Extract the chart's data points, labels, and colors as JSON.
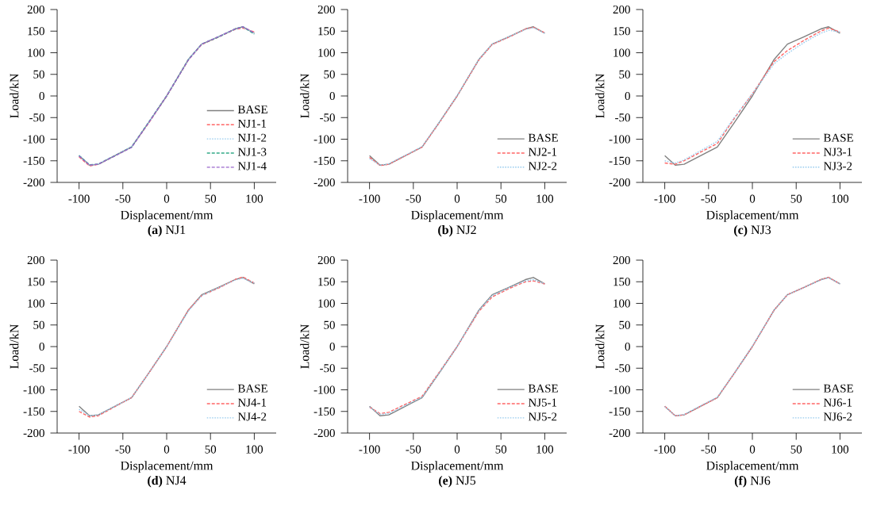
{
  "chart_data": [
    {
      "type": "line",
      "title": "**(a)** NJ1",
      "xlabel": "Displacement/mm",
      "ylabel": "Load/kN",
      "legend": "bottom right",
      "xlim": [
        -125,
        125
      ],
      "ylim": [
        -200,
        200
      ],
      "xticks": [
        -100,
        -50,
        0,
        50,
        100
      ],
      "yticks": [
        -200,
        -150,
        -100,
        -50,
        0,
        50,
        100,
        150,
        200
      ],
      "x": [
        -100,
        -88,
        -78,
        -40,
        -20,
        0,
        25,
        40,
        60,
        78,
        87,
        100
      ],
      "series": [
        {
          "name": "BASE",
          "color": "#808080",
          "line_style": "solid",
          "values": [
            -138,
            -160,
            -158,
            -118,
            -60,
            0,
            85,
            120,
            138,
            155,
            160,
            145
          ]
        },
        {
          "name": "NJ1-1",
          "color": "#ff6666",
          "line_style": "dashed",
          "values": [
            -141,
            -162,
            -158,
            -118,
            -61,
            0,
            84,
            119,
            137,
            154,
            157,
            148
          ]
        },
        {
          "name": "NJ1-2",
          "color": "#99ccee",
          "line_style": "dotted",
          "values": [
            -137,
            -160,
            -157,
            -117,
            -60,
            1,
            85,
            120,
            138,
            154,
            159,
            145
          ]
        },
        {
          "name": "NJ1-3",
          "color": "#33aa88",
          "line_style": "dashed",
          "values": [
            -138,
            -159,
            -158,
            -118,
            -59,
            0,
            85,
            120,
            137,
            155,
            160,
            143
          ]
        },
        {
          "name": "NJ1-4",
          "color": "#9966cc",
          "line_style": "dashed",
          "values": [
            -139,
            -160,
            -158,
            -119,
            -60,
            0,
            84,
            120,
            138,
            155,
            160,
            146
          ]
        }
      ]
    },
    {
      "type": "line",
      "title": "**(b)** NJ2",
      "xlabel": "Displacement/mm",
      "ylabel": "Load/kN",
      "legend": "bottom right",
      "xlim": [
        -125,
        125
      ],
      "ylim": [
        -200,
        200
      ],
      "xticks": [
        -100,
        -50,
        0,
        50,
        100
      ],
      "yticks": [
        -200,
        -150,
        -100,
        -50,
        0,
        50,
        100,
        150,
        200
      ],
      "x": [
        -100,
        -88,
        -78,
        -40,
        -20,
        0,
        25,
        40,
        60,
        78,
        87,
        100
      ],
      "series": [
        {
          "name": "BASE",
          "color": "#808080",
          "line_style": "solid",
          "values": [
            -138,
            -160,
            -158,
            -118,
            -60,
            0,
            85,
            120,
            138,
            155,
            160,
            145
          ]
        },
        {
          "name": "NJ2-1",
          "color": "#ff6666",
          "line_style": "dashed",
          "values": [
            -142,
            -161,
            -158,
            -118,
            -61,
            0,
            84,
            119,
            137,
            155,
            159,
            146
          ]
        },
        {
          "name": "NJ2-2",
          "color": "#99ccee",
          "line_style": "dotted",
          "values": [
            -145,
            -160,
            -157,
            -117,
            -60,
            1,
            85,
            120,
            138,
            154,
            158,
            145
          ]
        }
      ]
    },
    {
      "type": "line",
      "title": "**(c)** NJ3",
      "xlabel": "Displacement/mm",
      "ylabel": "Load/kN",
      "legend": "bottom right",
      "xlim": [
        -125,
        125
      ],
      "ylim": [
        -200,
        200
      ],
      "xticks": [
        -100,
        -50,
        0,
        50,
        100
      ],
      "yticks": [
        -200,
        -150,
        -100,
        -50,
        0,
        50,
        100,
        150,
        200
      ],
      "x": [
        -100,
        -88,
        -78,
        -40,
        -20,
        0,
        25,
        40,
        60,
        78,
        87,
        100
      ],
      "series": [
        {
          "name": "BASE",
          "color": "#808080",
          "line_style": "solid",
          "values": [
            -138,
            -160,
            -158,
            -118,
            -60,
            0,
            85,
            120,
            138,
            155,
            160,
            145
          ]
        },
        {
          "name": "NJ3-1",
          "color": "#ff6666",
          "line_style": "dashed",
          "values": [
            -155,
            -158,
            -150,
            -110,
            -50,
            5,
            80,
            105,
            130,
            150,
            157,
            148
          ]
        },
        {
          "name": "NJ3-2",
          "color": "#99ccee",
          "line_style": "dotted",
          "values": [
            -150,
            -155,
            -148,
            -105,
            -48,
            5,
            75,
            98,
            125,
            145,
            152,
            148
          ]
        }
      ]
    },
    {
      "type": "line",
      "title": "**(d)** NJ4",
      "xlabel": "Displacement/mm",
      "ylabel": "Load/kN",
      "legend": "bottom right",
      "xlim": [
        -125,
        125
      ],
      "ylim": [
        -200,
        200
      ],
      "xticks": [
        -100,
        -50,
        0,
        50,
        100
      ],
      "yticks": [
        -200,
        -150,
        -100,
        -50,
        0,
        50,
        100,
        150,
        200
      ],
      "x": [
        -100,
        -88,
        -78,
        -40,
        -20,
        0,
        25,
        40,
        60,
        78,
        87,
        100
      ],
      "series": [
        {
          "name": "BASE",
          "color": "#808080",
          "line_style": "solid",
          "values": [
            -138,
            -160,
            -158,
            -118,
            -60,
            0,
            85,
            120,
            138,
            155,
            160,
            145
          ]
        },
        {
          "name": "NJ4-1",
          "color": "#ff6666",
          "line_style": "dashed",
          "values": [
            -150,
            -163,
            -160,
            -118,
            -60,
            0,
            85,
            118,
            136,
            155,
            161,
            147
          ]
        },
        {
          "name": "NJ4-2",
          "color": "#99ccee",
          "line_style": "dotted",
          "values": [
            -145,
            -160,
            -158,
            -118,
            -60,
            0,
            83,
            118,
            137,
            154,
            158,
            147
          ]
        }
      ]
    },
    {
      "type": "line",
      "title": "**(e)** NJ5",
      "xlabel": "Displacement/mm",
      "ylabel": "Load/kN",
      "legend": "bottom right",
      "xlim": [
        -125,
        125
      ],
      "ylim": [
        -200,
        200
      ],
      "xticks": [
        -100,
        -50,
        0,
        50,
        100
      ],
      "yticks": [
        -200,
        -150,
        -100,
        -50,
        0,
        50,
        100,
        150,
        200
      ],
      "x": [
        -100,
        -88,
        -78,
        -40,
        -20,
        0,
        25,
        40,
        60,
        78,
        87,
        100
      ],
      "series": [
        {
          "name": "BASE",
          "color": "#808080",
          "line_style": "solid",
          "values": [
            -138,
            -160,
            -158,
            -118,
            -60,
            0,
            85,
            120,
            138,
            155,
            160,
            145
          ]
        },
        {
          "name": "NJ5-1",
          "color": "#ff6666",
          "line_style": "dashed",
          "values": [
            -140,
            -155,
            -152,
            -115,
            -58,
            0,
            82,
            115,
            135,
            150,
            152,
            145
          ]
        },
        {
          "name": "NJ5-2",
          "color": "#99ccee",
          "line_style": "dotted",
          "values": [
            -140,
            -157,
            -155,
            -117,
            -59,
            0,
            84,
            118,
            137,
            152,
            155,
            145
          ]
        }
      ]
    },
    {
      "type": "line",
      "title": "**(f)** NJ6",
      "xlabel": "Displacement/mm",
      "ylabel": "Load/kN",
      "legend": "bottom right",
      "xlim": [
        -125,
        125
      ],
      "ylim": [
        -200,
        200
      ],
      "xticks": [
        -100,
        -50,
        0,
        50,
        100
      ],
      "yticks": [
        -200,
        -150,
        -100,
        -50,
        0,
        50,
        100,
        150,
        200
      ],
      "x": [
        -100,
        -88,
        -78,
        -40,
        -20,
        0,
        25,
        40,
        60,
        78,
        87,
        100
      ],
      "series": [
        {
          "name": "BASE",
          "color": "#808080",
          "line_style": "solid",
          "values": [
            -138,
            -160,
            -158,
            -118,
            -60,
            0,
            85,
            120,
            138,
            155,
            160,
            145
          ]
        },
        {
          "name": "NJ6-1",
          "color": "#ff6666",
          "line_style": "dashed",
          "values": [
            -138,
            -160,
            -158,
            -118,
            -60,
            0,
            85,
            120,
            138,
            155,
            160,
            145
          ]
        },
        {
          "name": "NJ6-2",
          "color": "#99ccee",
          "line_style": "dotted",
          "values": [
            -139,
            -160,
            -157,
            -117,
            -60,
            1,
            85,
            120,
            138,
            154,
            159,
            145
          ]
        }
      ]
    }
  ]
}
